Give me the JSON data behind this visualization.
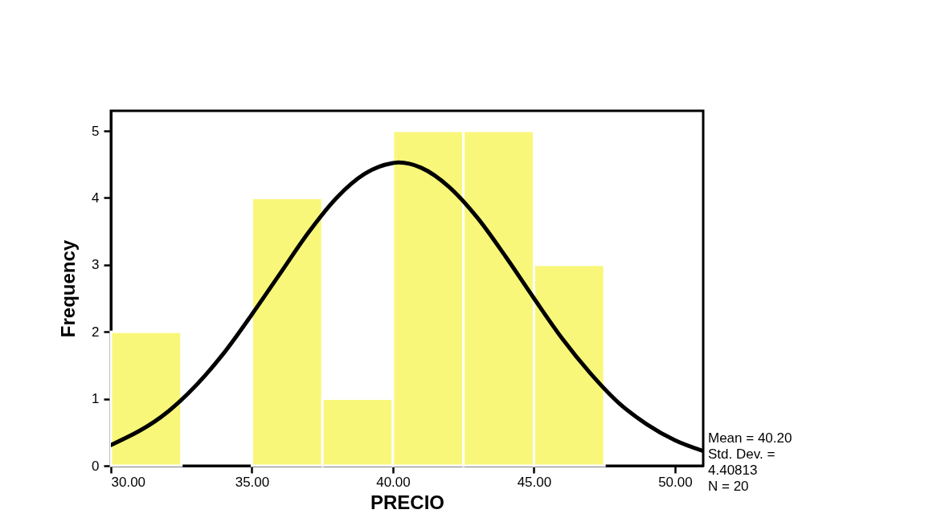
{
  "chart_data": {
    "type": "histogram",
    "xlabel": "PRECIO",
    "ylabel": "Frequency",
    "bins": [
      30,
      32.5,
      35,
      37.5,
      40,
      42.5,
      45,
      47.5
    ],
    "values": [
      2,
      0,
      4,
      1,
      5,
      5,
      3
    ],
    "color": "#f9f779",
    "series": [
      {
        "type": "line",
        "color": "#000000",
        "x": [
          30,
          32,
          34,
          35,
          36,
          37,
          38,
          39,
          40,
          40.2,
          41,
          42,
          43,
          44,
          45,
          46,
          47,
          48,
          49,
          50,
          51
        ],
        "values": [
          0.31,
          0.8,
          1.68,
          2.26,
          2.87,
          3.48,
          4.0,
          4.36,
          4.52,
          4.53,
          4.45,
          4.16,
          3.7,
          3.12,
          2.5,
          1.9,
          1.38,
          0.94,
          0.62,
          0.38,
          0.22
        ]
      }
    ],
    "xlim": [
      30,
      51
    ],
    "ylim": [
      0,
      5.3
    ],
    "xticks": [
      {
        "value": 30,
        "label": "30.00"
      },
      {
        "value": 35,
        "label": "35.00"
      },
      {
        "value": 40,
        "label": "40.00"
      },
      {
        "value": 45,
        "label": "45.00"
      },
      {
        "value": 50,
        "label": "50.00"
      }
    ],
    "yticks": [
      0,
      1,
      2,
      3,
      4,
      5
    ],
    "grid": false,
    "annotations": [
      "Mean = 40.20",
      "Std. Dev. =",
      "4.40813",
      "N = 20"
    ]
  }
}
